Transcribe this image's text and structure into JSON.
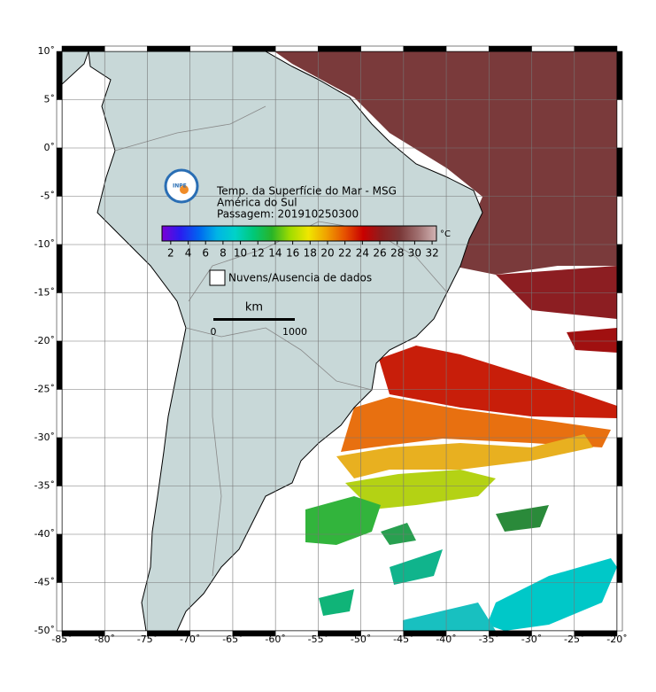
{
  "title_lines": [
    "Temp. da Superfície do Mar - MSG",
    "América do Sul",
    "Passagem: 201910250300"
  ],
  "logo": "INPE",
  "colorbar": {
    "unit": "°C",
    "lim": [
      1,
      32.5
    ],
    "ticks": [
      2,
      4,
      6,
      8,
      10,
      12,
      14,
      16,
      18,
      20,
      22,
      24,
      26,
      28,
      30,
      32
    ],
    "colors": [
      "#7b00d4",
      "#2a1cf0",
      "#0064f0",
      "#00b4e6",
      "#00d2c8",
      "#00c878",
      "#28b428",
      "#a0dc00",
      "#f0e600",
      "#f0a000",
      "#e65000",
      "#c80000",
      "#8c1e1e",
      "#7a3838",
      "#a07070",
      "#d2b4b4"
    ]
  },
  "legend": "Nuvens/Ausencia de dados",
  "scale": {
    "unit": "km",
    "labels": [
      "0",
      "1000"
    ]
  },
  "map": {
    "xlim": [
      -85,
      -20
    ],
    "ylim": [
      -50,
      10
    ],
    "grid": true,
    "xticks": [
      {
        "value": -85,
        "label": "-85˚"
      },
      {
        "value": -80,
        "label": "-80˚"
      },
      {
        "value": -75,
        "label": "-75˚"
      },
      {
        "value": -70,
        "label": "-70˚"
      },
      {
        "value": -65,
        "label": "-65˚"
      },
      {
        "value": -60,
        "label": "-60˚"
      },
      {
        "value": -55,
        "label": "-55˚"
      },
      {
        "value": -50,
        "label": "-50˚"
      },
      {
        "value": -45,
        "label": "-45˚"
      },
      {
        "value": -40,
        "label": "-40˚"
      },
      {
        "value": -35,
        "label": "-35˚"
      },
      {
        "value": -30,
        "label": "-30˚"
      },
      {
        "value": -25,
        "label": "-25˚"
      },
      {
        "value": -20,
        "label": "-20˚"
      }
    ],
    "yticks": [
      {
        "value": 10,
        "label": "10˚"
      },
      {
        "value": 5,
        "label": "5˚"
      },
      {
        "value": 0,
        "label": "0˚"
      },
      {
        "value": -5,
        "label": "-5˚"
      },
      {
        "value": -10,
        "label": "-10˚"
      },
      {
        "value": -15,
        "label": "-15˚"
      },
      {
        "value": -20,
        "label": "-20˚"
      },
      {
        "value": -25,
        "label": "-25˚"
      },
      {
        "value": -30,
        "label": "-30˚"
      },
      {
        "value": -35,
        "label": "-35˚"
      },
      {
        "value": -40,
        "label": "-40˚"
      },
      {
        "value": -45,
        "label": "-45˚"
      },
      {
        "value": -50,
        "label": "-50˚"
      }
    ]
  }
}
